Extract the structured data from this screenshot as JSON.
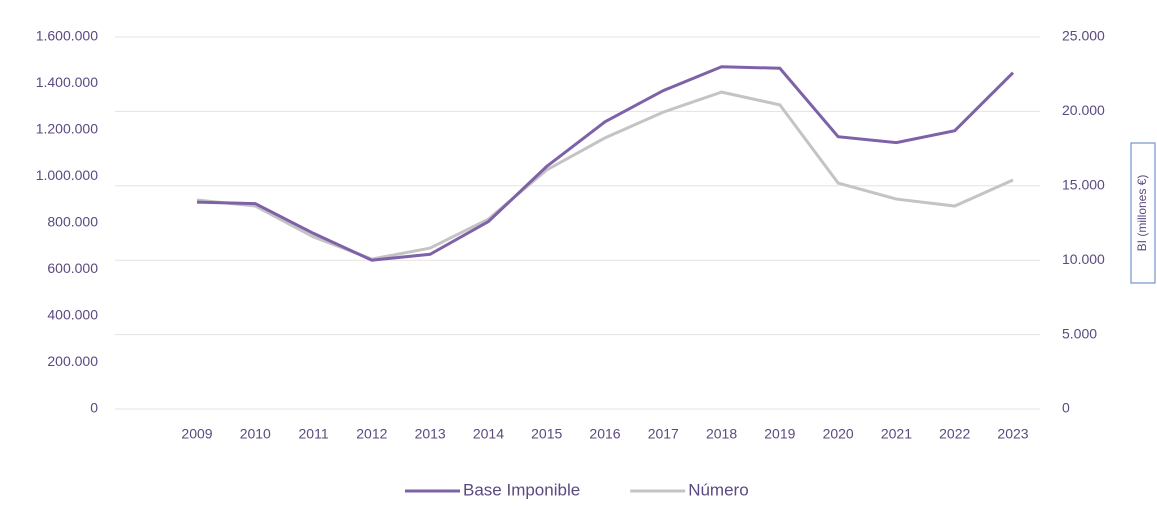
{
  "chart_data": {
    "type": "line",
    "categories": [
      "2009",
      "2010",
      "2011",
      "2012",
      "2013",
      "2014",
      "2015",
      "2016",
      "2017",
      "2018",
      "2019",
      "2020",
      "2021",
      "2022",
      "2023"
    ],
    "series": [
      {
        "name": "Base Imponible",
        "color": "#7e62a8",
        "axis": "y2",
        "values": [
          13900,
          13800,
          11800,
          10000,
          10400,
          12600,
          16300,
          19300,
          21400,
          23000,
          22900,
          18300,
          17900,
          18700,
          22600
        ]
      },
      {
        "name": "Número",
        "color": "#c4c4c4",
        "values": [
          899000,
          873000,
          740000,
          645000,
          692000,
          817000,
          1028000,
          1166000,
          1277000,
          1363000,
          1308000,
          972000,
          903000,
          873000,
          985000
        ]
      }
    ],
    "ylim": [
      0,
      1600000
    ],
    "yticks": [
      0,
      {
        "value": 200000,
        "label": "200.000"
      },
      {
        "value": 400000,
        "label": "400.000"
      },
      {
        "value": 600000,
        "label": "600.000"
      },
      {
        "value": 800000,
        "label": "800.000"
      },
      {
        "value": 1000000,
        "label": "1.000.000"
      },
      {
        "value": 1200000,
        "label": "1.200.000"
      },
      {
        "value": 1400000,
        "label": "1.400.000"
      },
      {
        "value": 1600000,
        "label": "1.600.000"
      }
    ],
    "y2lim": [
      0,
      25000
    ],
    "y2ticks": [
      0,
      {
        "value": 5000,
        "label": "5.000"
      },
      {
        "value": 10000,
        "label": "10.000"
      },
      {
        "value": 15000,
        "label": "15.000"
      },
      {
        "value": 20000,
        "label": "20.000"
      },
      {
        "value": 25000,
        "label": "25.000"
      }
    ],
    "y2label": "BI (millones €)",
    "grid": true,
    "legend": "bottom"
  }
}
